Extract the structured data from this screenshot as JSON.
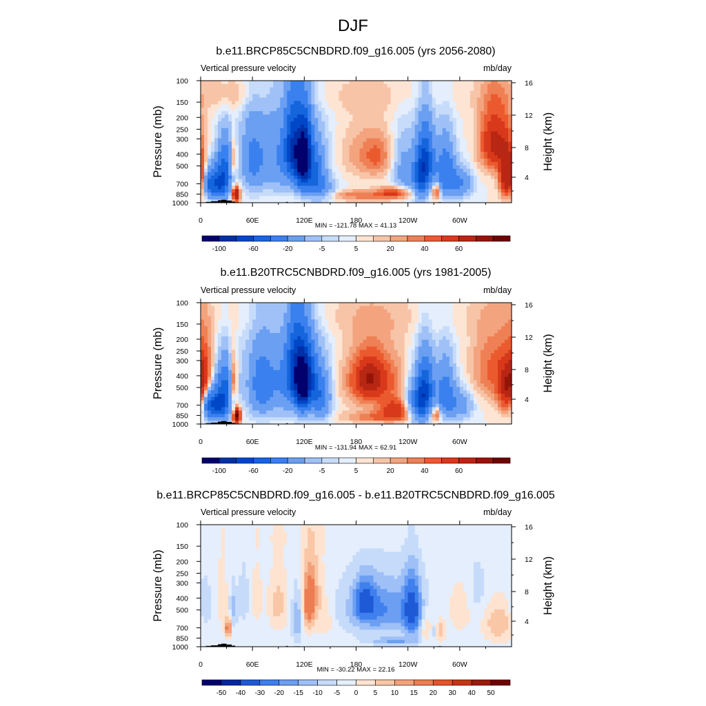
{
  "figure_title": "DJF",
  "chart_data": [
    {
      "type": "heatmap",
      "title": "b.e11.BRCP85C5CNBDRD.f09_g16.005 (yrs 2056-2080)",
      "left_label": "Vertical pressure velocity",
      "right_label": "mb/day",
      "ylabel": "Pressure (mb)",
      "ylabel_right": "Height (km)",
      "xticks": [
        "0",
        "60E",
        "120E",
        "180",
        "120W",
        "60W"
      ],
      "yticks": [
        "100",
        "150",
        "200",
        "250",
        "300",
        "400",
        "500",
        "700",
        "850",
        "1000"
      ],
      "yticks_right": [
        "16",
        "12",
        "8",
        "4"
      ],
      "stats": "MIN = -121.78  MAX =  41.13",
      "colorbar_labels": [
        "-100",
        "-60",
        "-20",
        "-5",
        "5",
        "20",
        "40",
        "60"
      ],
      "levels": [
        -120,
        -100,
        -80,
        -60,
        -40,
        -20,
        -10,
        -5,
        -2,
        2,
        5,
        10,
        15,
        20,
        30,
        40,
        50,
        60
      ],
      "min": -121.78,
      "max": 41.13,
      "features": [
        {
          "lon": 355,
          "p": 600,
          "w_lon": 6,
          "w_p": 320,
          "val": 55
        },
        {
          "lon": 22,
          "p": 700,
          "w_lon": 8,
          "w_p": 260,
          "val": -70
        },
        {
          "lon": 28,
          "p": 450,
          "w_lon": 6,
          "w_p": 250,
          "val": -40
        },
        {
          "lon": 10,
          "p": 700,
          "w_lon": 5,
          "w_p": 220,
          "val": -35
        },
        {
          "lon": 41,
          "p": 850,
          "w_lon": 3,
          "w_p": 160,
          "val": 55
        },
        {
          "lon": 38,
          "p": 450,
          "w_lon": 3,
          "w_p": 200,
          "val": 25
        },
        {
          "lon": 95,
          "p": 420,
          "w_lon": 30,
          "w_p": 420,
          "val": -30
        },
        {
          "lon": 108,
          "p": 350,
          "w_lon": 7,
          "w_p": 320,
          "val": -70
        },
        {
          "lon": 118,
          "p": 500,
          "w_lon": 5,
          "w_p": 320,
          "val": -80
        },
        {
          "lon": 122,
          "p": 350,
          "w_lon": 5,
          "w_p": 250,
          "val": -55
        },
        {
          "lon": 132,
          "p": 600,
          "w_lon": 8,
          "w_p": 340,
          "val": -45
        },
        {
          "lon": 145,
          "p": 800,
          "w_lon": 10,
          "w_p": 200,
          "val": -18
        },
        {
          "lon": 60,
          "p": 450,
          "w_lon": 8,
          "w_p": 380,
          "val": -22
        },
        {
          "lon": 185,
          "p": 400,
          "w_lon": 22,
          "w_p": 250,
          "val": 10
        },
        {
          "lon": 205,
          "p": 420,
          "w_lon": 12,
          "w_p": 200,
          "val": 14
        },
        {
          "lon": 190,
          "p": 870,
          "w_lon": 40,
          "w_p": 110,
          "val": 16
        },
        {
          "lon": 225,
          "p": 820,
          "w_lon": 12,
          "w_p": 110,
          "val": 24
        },
        {
          "lon": 236,
          "p": 550,
          "w_lon": 10,
          "w_p": 380,
          "val": -22
        },
        {
          "lon": 255,
          "p": 600,
          "w_lon": 6,
          "w_p": 380,
          "val": -60
        },
        {
          "lon": 262,
          "p": 450,
          "w_lon": 6,
          "w_p": 320,
          "val": -55
        },
        {
          "lon": 273,
          "p": 800,
          "w_lon": 3,
          "w_p": 160,
          "val": 30
        },
        {
          "lon": 283,
          "p": 550,
          "w_lon": 8,
          "w_p": 360,
          "val": -45
        },
        {
          "lon": 300,
          "p": 700,
          "w_lon": 10,
          "w_p": 240,
          "val": -30
        },
        {
          "lon": 340,
          "p": 320,
          "w_lon": 12,
          "w_p": 250,
          "val": 38
        },
        {
          "lon": 165,
          "p": 130,
          "w_lon": 140,
          "w_p": 70,
          "val": 4
        },
        {
          "lon": 40,
          "p": 130,
          "w_lon": 25,
          "w_p": 60,
          "val": 6
        }
      ]
    },
    {
      "type": "heatmap",
      "title": "b.e11.B20TRC5CNBDRD.f09_g16.005 (yrs 1981-2005)",
      "left_label": "Vertical pressure velocity",
      "right_label": "mb/day",
      "ylabel": "Pressure (mb)",
      "ylabel_right": "Height (km)",
      "xticks": [
        "0",
        "60E",
        "120E",
        "180",
        "120W",
        "60W"
      ],
      "yticks": [
        "100",
        "150",
        "200",
        "250",
        "300",
        "400",
        "500",
        "700",
        "850",
        "1000"
      ],
      "yticks_right": [
        "16",
        "12",
        "8",
        "4"
      ],
      "stats": "MIN = -131.94  MAX =  62.91",
      "colorbar_labels": [
        "-100",
        "-60",
        "-20",
        "-5",
        "5",
        "20",
        "40",
        "60"
      ],
      "levels": [
        -120,
        -100,
        -80,
        -60,
        -40,
        -20,
        -10,
        -5,
        -2,
        2,
        5,
        10,
        15,
        20,
        30,
        40,
        50,
        60
      ],
      "min": -131.94,
      "max": 62.91,
      "features": [
        {
          "lon": 355,
          "p": 500,
          "w_lon": 8,
          "w_p": 320,
          "val": 40
        },
        {
          "lon": 5,
          "p": 350,
          "w_lon": 6,
          "w_p": 250,
          "val": 20
        },
        {
          "lon": 22,
          "p": 700,
          "w_lon": 8,
          "w_p": 260,
          "val": -75
        },
        {
          "lon": 28,
          "p": 450,
          "w_lon": 6,
          "w_p": 250,
          "val": -40
        },
        {
          "lon": 10,
          "p": 700,
          "w_lon": 5,
          "w_p": 220,
          "val": -40
        },
        {
          "lon": 42,
          "p": 860,
          "w_lon": 3,
          "w_p": 160,
          "val": 65
        },
        {
          "lon": 38,
          "p": 450,
          "w_lon": 3,
          "w_p": 250,
          "val": 30
        },
        {
          "lon": 95,
          "p": 450,
          "w_lon": 30,
          "w_p": 430,
          "val": -30
        },
        {
          "lon": 110,
          "p": 350,
          "w_lon": 7,
          "w_p": 320,
          "val": -70
        },
        {
          "lon": 118,
          "p": 500,
          "w_lon": 5,
          "w_p": 320,
          "val": -85
        },
        {
          "lon": 125,
          "p": 400,
          "w_lon": 6,
          "w_p": 280,
          "val": -55
        },
        {
          "lon": 138,
          "p": 600,
          "w_lon": 8,
          "w_p": 340,
          "val": -40
        },
        {
          "lon": 70,
          "p": 500,
          "w_lon": 8,
          "w_p": 380,
          "val": -25
        },
        {
          "lon": 200,
          "p": 450,
          "w_lon": 25,
          "w_p": 330,
          "val": 24
        },
        {
          "lon": 195,
          "p": 420,
          "w_lon": 12,
          "w_p": 200,
          "val": 25
        },
        {
          "lon": 225,
          "p": 750,
          "w_lon": 12,
          "w_p": 160,
          "val": 28
        },
        {
          "lon": 210,
          "p": 880,
          "w_lon": 30,
          "w_p": 110,
          "val": 18
        },
        {
          "lon": 243,
          "p": 650,
          "w_lon": 6,
          "w_p": 350,
          "val": -20
        },
        {
          "lon": 255,
          "p": 650,
          "w_lon": 6,
          "w_p": 380,
          "val": -65
        },
        {
          "lon": 262,
          "p": 500,
          "w_lon": 6,
          "w_p": 320,
          "val": -50
        },
        {
          "lon": 273,
          "p": 820,
          "w_lon": 3,
          "w_p": 150,
          "val": 25
        },
        {
          "lon": 283,
          "p": 550,
          "w_lon": 8,
          "w_p": 360,
          "val": -40
        },
        {
          "lon": 300,
          "p": 700,
          "w_lon": 10,
          "w_p": 240,
          "val": -25
        },
        {
          "lon": 335,
          "p": 350,
          "w_lon": 15,
          "w_p": 300,
          "val": 18
        },
        {
          "lon": 160,
          "p": 130,
          "w_lon": 140,
          "w_p": 70,
          "val": 4
        }
      ]
    },
    {
      "type": "heatmap",
      "title": "b.e11.BRCP85C5CNBDRD.f09_g16.005 - b.e11.B20TRC5CNBDRD.f09_g16.005",
      "left_label": "Vertical pressure velocity",
      "right_label": "mb/day",
      "ylabel": "Pressure (mb)",
      "ylabel_right": "Height (km)",
      "xticks": [
        "0",
        "60E",
        "120E",
        "180",
        "120W",
        "60W"
      ],
      "yticks": [
        "100",
        "150",
        "200",
        "250",
        "300",
        "400",
        "500",
        "700",
        "850",
        "1000"
      ],
      "yticks_right": [
        "16",
        "12",
        "8",
        "4"
      ],
      "stats": "MIN = -30.22  MAX =  22.16",
      "colorbar_labels": [
        "-50",
        "-40",
        "-30",
        "-20",
        "-15",
        "-10",
        "-5",
        "0",
        "5",
        "10",
        "15",
        "20",
        "30",
        "40",
        "50"
      ],
      "levels": [
        -50,
        -40,
        -30,
        -20,
        -15,
        -10,
        -5,
        0,
        5,
        10,
        15,
        20,
        30,
        40,
        50
      ],
      "min": -30.22,
      "max": 22.16,
      "features": [
        {
          "lon": 5,
          "p": 500,
          "w_lon": 5,
          "w_p": 300,
          "val": -8
        },
        {
          "lon": 25,
          "p": 400,
          "w_lon": 4,
          "w_p": 300,
          "val": 7
        },
        {
          "lon": 32,
          "p": 700,
          "w_lon": 3,
          "w_p": 150,
          "val": 22
        },
        {
          "lon": 38,
          "p": 500,
          "w_lon": 3,
          "w_p": 250,
          "val": -10
        },
        {
          "lon": 50,
          "p": 400,
          "w_lon": 4,
          "w_p": 250,
          "val": -7
        },
        {
          "lon": 90,
          "p": 450,
          "w_lon": 8,
          "w_p": 300,
          "val": 10
        },
        {
          "lon": 112,
          "p": 600,
          "w_lon": 5,
          "w_p": 350,
          "val": -12
        },
        {
          "lon": 125,
          "p": 450,
          "w_lon": 5,
          "w_p": 320,
          "val": 22
        },
        {
          "lon": 132,
          "p": 350,
          "w_lon": 7,
          "w_p": 300,
          "val": 10
        },
        {
          "lon": 145,
          "p": 600,
          "w_lon": 7,
          "w_p": 300,
          "val": 6
        },
        {
          "lon": 65,
          "p": 400,
          "w_lon": 5,
          "w_p": 300,
          "val": 5
        },
        {
          "lon": 210,
          "p": 500,
          "w_lon": 30,
          "w_p": 330,
          "val": -18
        },
        {
          "lon": 190,
          "p": 420,
          "w_lon": 8,
          "w_p": 200,
          "val": -20
        },
        {
          "lon": 245,
          "p": 500,
          "w_lon": 7,
          "w_p": 350,
          "val": -25
        },
        {
          "lon": 225,
          "p": 900,
          "w_lon": 20,
          "w_p": 80,
          "val": -12
        },
        {
          "lon": 262,
          "p": 700,
          "w_lon": 5,
          "w_p": 250,
          "val": 10
        },
        {
          "lon": 270,
          "p": 750,
          "w_lon": 3,
          "w_p": 150,
          "val": -8
        },
        {
          "lon": 278,
          "p": 750,
          "w_lon": 4,
          "w_p": 200,
          "val": 12
        },
        {
          "lon": 300,
          "p": 500,
          "w_lon": 10,
          "w_p": 300,
          "val": 6
        },
        {
          "lon": 320,
          "p": 350,
          "w_lon": 8,
          "w_p": 250,
          "val": -5
        },
        {
          "lon": 345,
          "p": 650,
          "w_lon": 12,
          "w_p": 300,
          "val": 12
        },
        {
          "lon": 160,
          "p": 120,
          "w_lon": 120,
          "w_p": 60,
          "val": 2
        }
      ]
    }
  ]
}
